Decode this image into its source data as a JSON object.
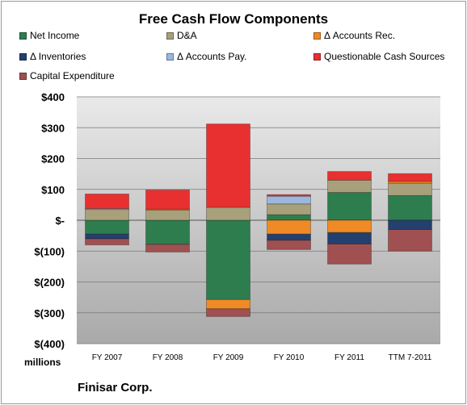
{
  "company": "Finisar Corp.",
  "units_label": "millions",
  "chart_data": {
    "type": "bar",
    "stacked": true,
    "title": "Free Cash Flow Components",
    "categories": [
      "FY 2007",
      "FY 2008",
      "FY 2009",
      "FY 2010",
      "FY 2011",
      "TTM 7-2011"
    ],
    "ylim": [
      -400,
      400
    ],
    "yticks": [
      400,
      300,
      200,
      100,
      0,
      -100,
      -200,
      -300,
      -400
    ],
    "ytick_labels": [
      "$400",
      "$300",
      "$200",
      "$100",
      "$-",
      "$(100)",
      "$(200)",
      "$(300)",
      "$(400)"
    ],
    "grid": true,
    "legend_position": "top",
    "series": [
      {
        "name": "Net Income",
        "color": "#2e7d4f",
        "values": [
          -45,
          -78,
          -257,
          18,
          90,
          80
        ]
      },
      {
        "name": "D&A",
        "color": "#a8a07a",
        "values": [
          35,
          33,
          42,
          35,
          40,
          40
        ]
      },
      {
        "name": "Δ Accounts Rec.",
        "color": "#f08a24",
        "values": [
          0,
          3,
          -30,
          -45,
          -40,
          6
        ]
      },
      {
        "name": "Δ Inventories",
        "color": "#24406e",
        "values": [
          -15,
          0,
          0,
          -20,
          -37,
          -30
        ]
      },
      {
        "name": "Δ Accounts Pay.",
        "color": "#9ab7df",
        "values": [
          3,
          0,
          0,
          25,
          0,
          0
        ]
      },
      {
        "name": "Questionable Cash Sources",
        "color": "#e83030",
        "values": [
          47,
          62,
          270,
          5,
          28,
          25
        ]
      },
      {
        "name": "Capital Expenditure",
        "color": "#a05050",
        "values": [
          -20,
          -25,
          -25,
          -30,
          -65,
          -70
        ]
      }
    ]
  }
}
